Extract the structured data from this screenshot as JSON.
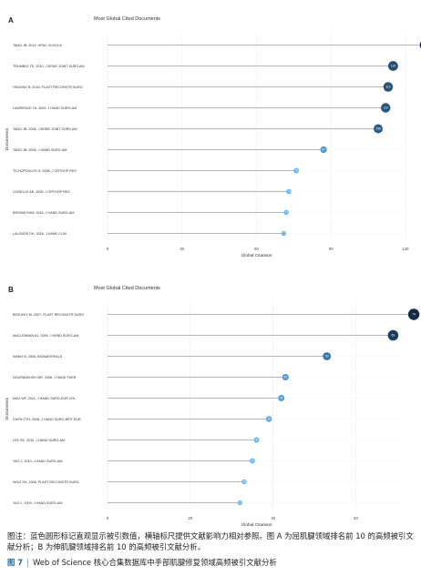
{
  "chart_data": [
    {
      "type": "lollipop",
      "panel": "A",
      "title": "Most Global Cited Documents",
      "xlabel": "Global Citations",
      "ylabel": "Documents",
      "xlim": [
        0,
        120
      ],
      "xticks": [
        0,
        30,
        60,
        90,
        120
      ],
      "categories": [
        "TANG JB, 2013, HPAC CLIN N A",
        "TRUMBLE TE, 2010, J BONE JOINT SURG AM",
        "HIGGINS R, 2016, PLAST RECONSTR SURG",
        "LAWRENCE TA, 2005, J HAND SURG-AM",
        "TANG JB, 2008, J BONE JOINT SURG AM",
        "TANG JB, 2005, J HAND SURG-AM",
        "TICHOPOULOS S, 2008, J ORTHOP RES",
        "LOISELLE AE, 2009, J ORTHOP RES",
        "BROWN SHM, 2016, J HAND SURG-AM",
        "LALONDE DH, 2016, J HAND CLIN"
      ],
      "values": [
        128,
        115,
        113,
        112,
        109,
        87,
        76,
        73,
        72,
        71
      ],
      "point_labels": [
        "128",
        "115",
        "113",
        "112",
        "109",
        "87",
        "76",
        "73",
        "72",
        "71"
      ],
      "grid": true
    },
    {
      "type": "lollipop",
      "panel": "B",
      "title": "Most Global Cited Documents",
      "xlabel": "Global Citations",
      "ylabel": "Documents",
      "xlim": [
        0,
        72
      ],
      "xticks": [
        0,
        20,
        40,
        60
      ],
      "categories": [
        "BEZUHLY M, 2007, PLAST RECONSTR SURG",
        "MACLENNAN AJ, 2006, J HAND SURG-AM",
        "WANG B, 2008, BIOMATERIALS",
        "NOURBAKHSH MR, 2008, J HAND THER",
        "MAO WF, 2011, J HAND SURG-EUR VOL",
        "CHEN CTH, 2006, J HAND SURG-BRIT EUR",
        "LEE SK, 2010, J HAND SURG-AM",
        "YAO J, 2010, J HAND SURG-AM",
        "WOO SH, 2008, PLAST RECONSTR SURG",
        "YAO J, 2009, J HAND SURG-AM"
      ],
      "values": [
        74,
        69,
        53,
        43,
        42,
        39,
        36,
        35,
        33,
        32
      ],
      "point_labels": [
        "74",
        "69",
        "53",
        "43",
        "42",
        "39",
        "36",
        "35",
        "33",
        "32"
      ],
      "grid": true
    }
  ],
  "colors": {
    "dot_dark": "#132b43",
    "dot_light": "#56b1f7",
    "stem": "#9e9e9e",
    "grid": "#eeeeee"
  },
  "caption": "图注：蓝色圆形标记直观显示被引数值，横轴标尺提供文献影响力相对参照。图 A 为屈肌腱领域排名前 10 的高频被引文献分析；B 为伸肌腱领域排名前 10 的高频被引文献分析。",
  "figure_label": {
    "number": "图 7",
    "separator": "|",
    "text": "Web of Science 核心合集数据库中手部肌腱修复领域高频被引文献分析"
  }
}
